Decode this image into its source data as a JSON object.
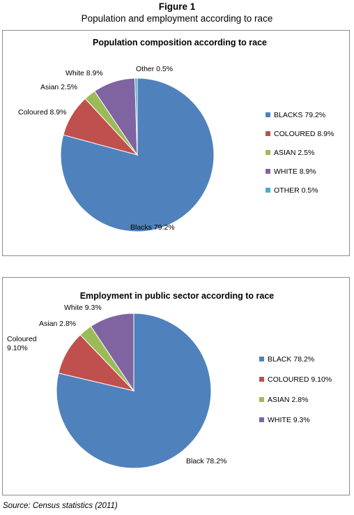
{
  "figure_label": "Figure 1",
  "figure_title": "Population and employment according to race",
  "source": "Source: Census statistics (2011)",
  "chart_data": [
    {
      "type": "pie",
      "title": "Population composition according to race",
      "legend_position": "right",
      "slices": [
        {
          "name": "Blacks",
          "value": 79.2,
          "label": "Blacks 79.2%",
          "legend": "BLACKS 79.2%",
          "color": "#4f81bd"
        },
        {
          "name": "Coloured",
          "value": 8.9,
          "label": "Coloured 8.9%",
          "legend": "COLOURED 8.9%",
          "color": "#c0504d"
        },
        {
          "name": "Asian",
          "value": 2.5,
          "label": "Asian  2.5%",
          "legend": "ASIAN  2.5%",
          "color": "#9bbb59"
        },
        {
          "name": "White",
          "value": 8.9,
          "label": "White  8.9%",
          "legend": "WHITE  8.9%",
          "color": "#8064a2"
        },
        {
          "name": "Other",
          "value": 0.5,
          "label": "Other  0.5%",
          "legend": "OTHER  0.5%",
          "color": "#4bacc6"
        }
      ]
    },
    {
      "type": "pie",
      "title": "Employment in public sector according to race",
      "legend_position": "right",
      "slices": [
        {
          "name": "Black",
          "value": 78.2,
          "label": "Black  78.2%",
          "legend": "BLACK  78.2%",
          "color": "#4f81bd"
        },
        {
          "name": "Coloured",
          "value": 9.1,
          "label": "Coloured\n9.10%",
          "legend": "COLOURED  9.10%",
          "color": "#c0504d"
        },
        {
          "name": "Asian",
          "value": 2.8,
          "label": "Asian  2.8%",
          "legend": "ASIAN  2.8%",
          "color": "#9bbb59"
        },
        {
          "name": "White",
          "value": 9.3,
          "label": "White  9.3%",
          "legend": "WHITE  9.3%",
          "color": "#8064a2"
        }
      ]
    }
  ]
}
